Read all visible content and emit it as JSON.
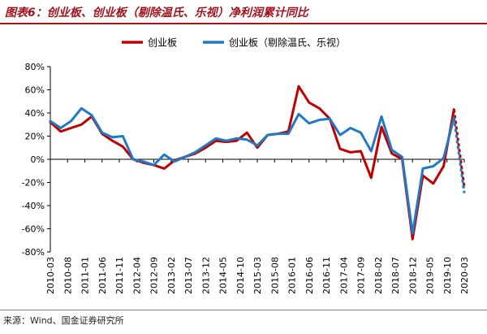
{
  "title": "图表6：创业板、创业板（剔除温氏、乐视）净利润累计同比",
  "source": "来源：Wind、国金证券研究所",
  "colors": {
    "title": "#a3121e",
    "red": "#c00000",
    "blue": "#1f7ac3",
    "axis": "#000000"
  },
  "chart_data": {
    "type": "line",
    "title": "图表6：创业板、创业板（剔除温氏、乐视）净利润累计同比",
    "xlabel": "",
    "ylabel": "",
    "ylim": [
      -80,
      80
    ],
    "yticks": [
      80,
      60,
      40,
      20,
      0,
      -20,
      -40,
      -60,
      -80
    ],
    "ytick_labels": [
      "80%",
      "60%",
      "40%",
      "20%",
      "0%",
      "-20%",
      "-40%",
      "-60%",
      "-80%"
    ],
    "y_unit": "%",
    "grid": false,
    "legend": "top",
    "x": [
      "2010-03",
      "2010-06",
      "2010-09",
      "2010-12",
      "2011-03",
      "2011-06",
      "2011-09",
      "2011-12",
      "2012-03",
      "2012-06",
      "2012-09",
      "2012-12",
      "2013-03",
      "2013-06",
      "2013-09",
      "2013-12",
      "2014-03",
      "2014-06",
      "2014-09",
      "2014-12",
      "2015-03",
      "2015-06",
      "2015-09",
      "2015-12",
      "2016-03",
      "2016-06",
      "2016-09",
      "2016-12",
      "2017-03",
      "2017-06",
      "2017-09",
      "2017-12",
      "2018-03",
      "2018-06",
      "2018-09",
      "2018-12",
      "2019-03",
      "2019-06",
      "2019-09",
      "2019-12",
      "2020-03"
    ],
    "xtick_labels": [
      "2010-03",
      "2010-08",
      "2011-01",
      "2011-06",
      "2011-11",
      "2012-04",
      "2012-09",
      "2013-02",
      "2013-07",
      "2013-12",
      "2014-05",
      "2014-10",
      "2015-03",
      "2015-08",
      "2016-01",
      "2016-06",
      "2016-11",
      "2017-04",
      "2017-09",
      "2018-02",
      "2018-07",
      "2018-12",
      "2019-05",
      "2019-10",
      "2020-03"
    ],
    "estimated_from": "2019-12",
    "series": [
      {
        "name": "创业板",
        "color": "#c00000",
        "values": [
          32,
          24,
          27,
          30,
          37,
          22,
          16,
          11,
          0,
          -3,
          -5,
          -8,
          -1,
          2,
          5,
          10,
          16,
          15,
          16,
          23,
          10,
          21,
          22,
          24,
          63,
          49,
          44,
          35,
          9,
          6,
          7,
          -16,
          28,
          5,
          0,
          -69,
          -14,
          -21,
          -6,
          43,
          -24
        ]
      },
      {
        "name": "创业板（剔除温氏、乐视）",
        "color": "#1f7ac3",
        "values": [
          33,
          27,
          33,
          44,
          38,
          23,
          19,
          20,
          0,
          -2,
          -5,
          4,
          -2,
          2,
          6,
          12,
          18,
          16,
          18,
          17,
          12,
          21,
          22,
          22,
          39,
          31,
          34,
          35,
          21,
          27,
          23,
          7,
          37,
          8,
          2,
          -64,
          -8,
          -6,
          1,
          36,
          -29
        ]
      }
    ]
  }
}
